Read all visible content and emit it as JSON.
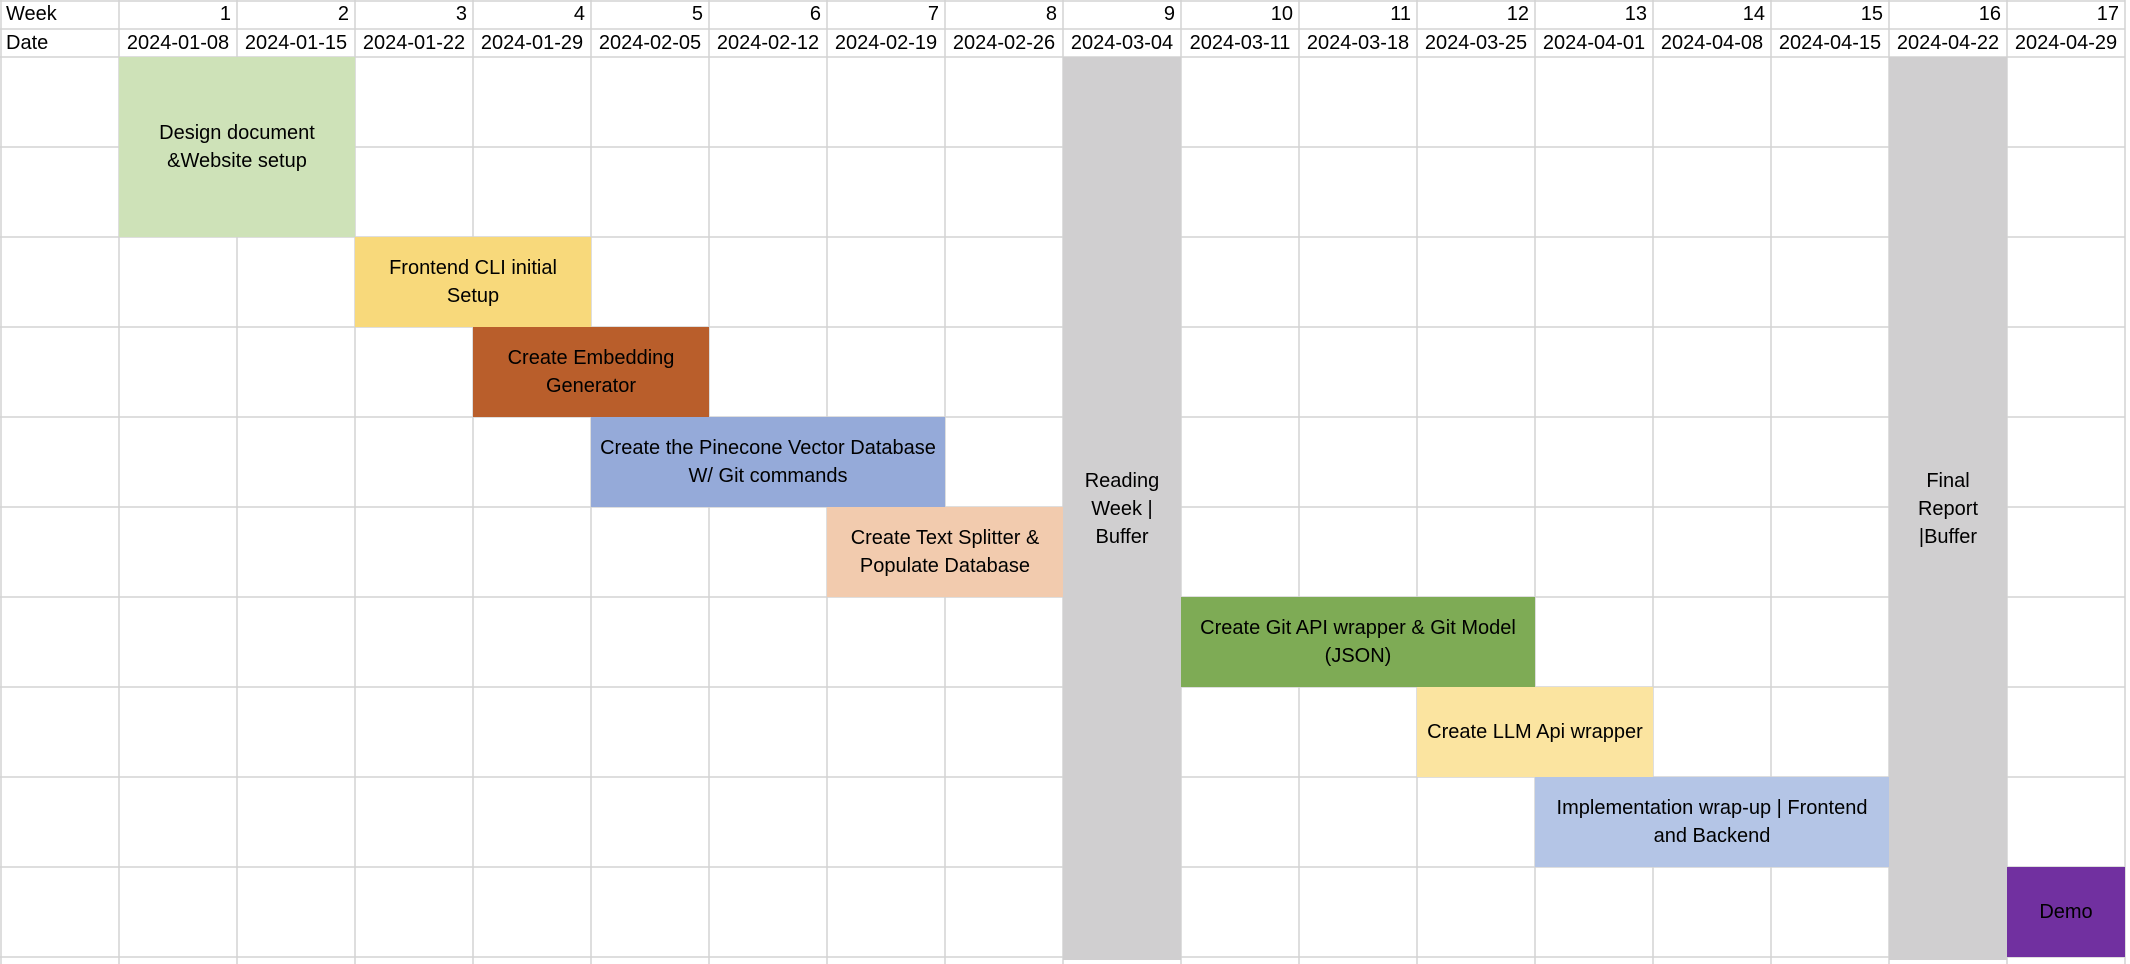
{
  "chart_data": {
    "type": "gantt",
    "header": {
      "week_label": "Week",
      "date_label": "Date"
    },
    "weeks": [
      1,
      2,
      3,
      4,
      5,
      6,
      7,
      8,
      9,
      10,
      11,
      12,
      13,
      14,
      15,
      16,
      17
    ],
    "dates": [
      "2024-01-08",
      "2024-01-15",
      "2024-01-22",
      "2024-01-29",
      "2024-02-05",
      "2024-02-12",
      "2024-02-19",
      "2024-02-26",
      "2024-03-04",
      "2024-03-11",
      "2024-03-18",
      "2024-03-25",
      "2024-04-01",
      "2024-04-08",
      "2024-04-15",
      "2024-04-22",
      "2024-04-29"
    ],
    "tasks": [
      {
        "label": "Design document\n&Website setup",
        "start_week": 1,
        "end_week": 2,
        "color": "#cee2b8"
      },
      {
        "label": "Frontend CLI initial Setup",
        "start_week": 3,
        "end_week": 4,
        "color": "#f8d97b"
      },
      {
        "label": "Create Embedding\nGenerator",
        "start_week": 4,
        "end_week": 5,
        "color": "#b95e2b"
      },
      {
        "label": "Create the Pinecone Vector Database\nW/ Git commands",
        "start_week": 5,
        "end_week": 7,
        "color": "#95aad9"
      },
      {
        "label": "Create Text Splitter &\nPopulate Database",
        "start_week": 7,
        "end_week": 8,
        "color": "#f2cbae"
      },
      {
        "label": "Create Git API wrapper & Git Model\n(JSON)",
        "start_week": 10,
        "end_week": 12,
        "color": "#7eab55"
      },
      {
        "label": "Create LLM Api wrapper",
        "start_week": 12,
        "end_week": 13,
        "color": "#fbe4a0"
      },
      {
        "label": "Implementation wrap-up | Frontend\nand Backend",
        "start_week": 13,
        "end_week": 15,
        "color": "#b4c5e6"
      },
      {
        "label": "Demo",
        "start_week": 17,
        "end_week": 17,
        "color": "#7130a0"
      }
    ],
    "buffers": [
      {
        "label": "Reading\nWeek |\nBuffer",
        "week": 9,
        "color": "#d0cfd0"
      },
      {
        "label": "Final\nReport\n|Buffer",
        "week": 16,
        "color": "#d0cfd0"
      }
    ],
    "grid": true
  }
}
